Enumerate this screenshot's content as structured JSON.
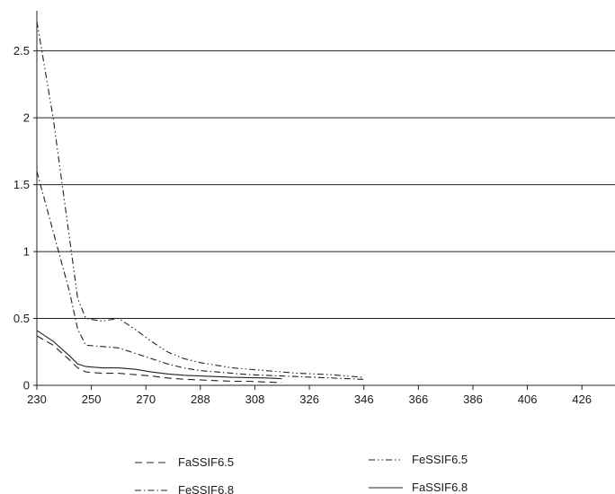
{
  "chart_data": {
    "type": "line",
    "title": "",
    "xlabel": "",
    "ylabel": "",
    "x_ticks": [
      "230",
      "250",
      "270",
      "288",
      "308",
      "326",
      "346",
      "366",
      "386",
      "406",
      "426"
    ],
    "y_ticks": [
      "0",
      "0.5",
      "1",
      "1.5",
      "2",
      "2.5"
    ],
    "ylim": [
      0,
      2.8
    ],
    "grid": "horizontal",
    "legend_position": "bottom",
    "x": [
      230,
      240,
      250,
      255,
      260,
      270,
      280,
      290,
      300,
      310,
      320,
      330,
      340,
      350,
      360,
      370,
      380,
      390,
      400,
      410,
      420,
      430
    ],
    "series": [
      {
        "name": "FaSSIF6.5",
        "dash": "8,5",
        "values": [
          0.37,
          0.3,
          0.19,
          0.13,
          0.1,
          0.09,
          0.09,
          0.08,
          0.07,
          0.055,
          0.045,
          0.04,
          0.035,
          0.03,
          0.03,
          0.025,
          0.02,
          null,
          null,
          null,
          null,
          null
        ]
      },
      {
        "name": "FeSSIF6.5",
        "dash": "7,3,1.5,3,1.5,3",
        "values": [
          2.72,
          2.0,
          1.1,
          0.65,
          0.5,
          0.48,
          0.5,
          0.42,
          0.33,
          0.25,
          0.2,
          0.17,
          0.15,
          0.13,
          0.12,
          0.11,
          0.1,
          0.09,
          0.085,
          0.08,
          0.07,
          0.06
        ]
      },
      {
        "name": "FeSSIF6.8",
        "dash": "7,3,1.5,3",
        "values": [
          1.6,
          1.15,
          0.7,
          0.42,
          0.3,
          0.29,
          0.28,
          0.24,
          0.2,
          0.16,
          0.13,
          0.11,
          0.1,
          0.09,
          0.08,
          0.075,
          0.07,
          0.065,
          0.06,
          0.055,
          0.05,
          0.045
        ]
      },
      {
        "name": "FaSSIF6.8",
        "dash": "",
        "values": [
          0.41,
          0.33,
          0.22,
          0.16,
          0.14,
          0.13,
          0.13,
          0.12,
          0.1,
          0.085,
          0.075,
          0.07,
          0.065,
          0.06,
          0.058,
          0.055,
          0.05,
          null,
          null,
          null,
          null,
          null
        ]
      }
    ]
  }
}
